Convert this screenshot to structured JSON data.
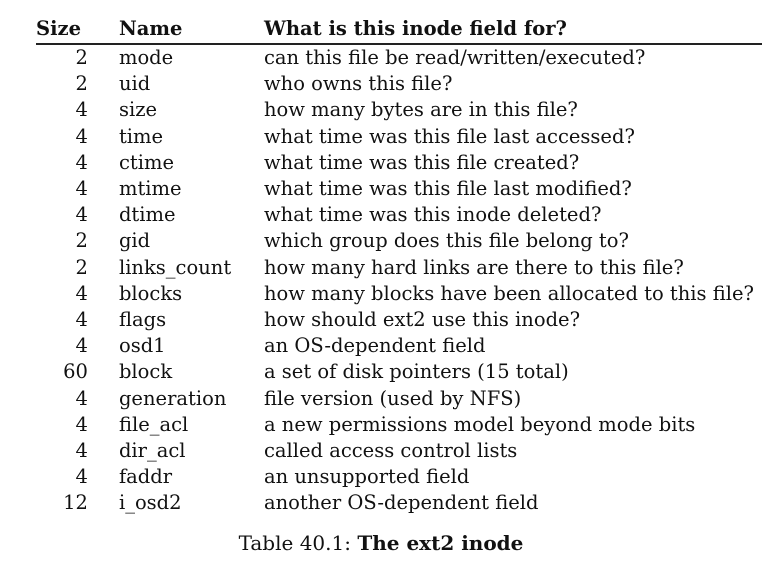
{
  "table": {
    "headers": {
      "size": "Size",
      "name": "Name",
      "desc": "What is this inode field for?"
    },
    "rows": [
      {
        "size": "2",
        "name": "mode",
        "desc": "can this file be read/written/executed?"
      },
      {
        "size": "2",
        "name": "uid",
        "desc": "who owns this file?"
      },
      {
        "size": "4",
        "name": "size",
        "desc": "how many bytes are in this file?"
      },
      {
        "size": "4",
        "name": "time",
        "desc": "what time was this file last accessed?"
      },
      {
        "size": "4",
        "name": "ctime",
        "desc": "what time was this file created?"
      },
      {
        "size": "4",
        "name": "mtime",
        "desc": "what time was this file last modified?"
      },
      {
        "size": "4",
        "name": "dtime",
        "desc": "what time was this inode deleted?"
      },
      {
        "size": "2",
        "name": "gid",
        "desc": "which group does this file belong to?"
      },
      {
        "size": "2",
        "name": "links_count",
        "desc": "how many hard links are there to this file?"
      },
      {
        "size": "4",
        "name": "blocks",
        "desc": "how many blocks have been allocated to this file?"
      },
      {
        "size": "4",
        "name": "flags",
        "desc": "how should ext2 use this inode?"
      },
      {
        "size": "4",
        "name": "osd1",
        "desc": "an OS-dependent field"
      },
      {
        "size": "60",
        "name": "block",
        "desc": "a set of disk pointers (15 total)"
      },
      {
        "size": "4",
        "name": "generation",
        "desc": "file version (used by NFS)"
      },
      {
        "size": "4",
        "name": "file_acl",
        "desc": "a new permissions model beyond mode bits"
      },
      {
        "size": "4",
        "name": "dir_acl",
        "desc": "called access control lists"
      },
      {
        "size": "4",
        "name": "faddr",
        "desc": "an unsupported field"
      },
      {
        "size": "12",
        "name": "i_osd2",
        "desc": "another OS-dependent field"
      }
    ]
  },
  "caption": {
    "label": "Table 40.1: ",
    "title": "The ext2 inode"
  }
}
